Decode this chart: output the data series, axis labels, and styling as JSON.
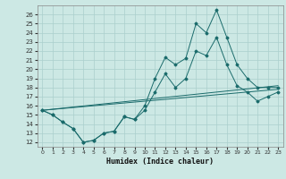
{
  "xlabel": "Humidex (Indice chaleur)",
  "background_color": "#cce8e4",
  "grid_color": "#aacfcc",
  "line_color": "#1a6b6b",
  "xlim": [
    -0.5,
    23.5
  ],
  "ylim": [
    11.5,
    27
  ],
  "xticks": [
    0,
    1,
    2,
    3,
    4,
    5,
    6,
    7,
    8,
    9,
    10,
    11,
    12,
    13,
    14,
    15,
    16,
    17,
    18,
    19,
    20,
    21,
    22,
    23
  ],
  "yticks": [
    12,
    13,
    14,
    15,
    16,
    17,
    18,
    19,
    20,
    21,
    22,
    23,
    24,
    25,
    26
  ],
  "line1_x": [
    0,
    1,
    2,
    3,
    4,
    5,
    6,
    7,
    8,
    9,
    10,
    11,
    12,
    13,
    14,
    15,
    16,
    17,
    18,
    19,
    20,
    21,
    22,
    23
  ],
  "line1_y": [
    15.5,
    15.0,
    14.2,
    13.5,
    12.0,
    12.2,
    13.0,
    13.2,
    14.8,
    14.5,
    16.0,
    19.0,
    21.3,
    20.5,
    21.2,
    25.0,
    24.0,
    26.5,
    23.5,
    20.5,
    19.0,
    18.0,
    18.0,
    18.0
  ],
  "line2_x": [
    0,
    1,
    2,
    3,
    4,
    5,
    6,
    7,
    8,
    9,
    10,
    11,
    12,
    13,
    14,
    15,
    16,
    17,
    18,
    19,
    20,
    21,
    22,
    23
  ],
  "line2_y": [
    15.5,
    15.0,
    14.2,
    13.5,
    12.0,
    12.2,
    13.0,
    13.2,
    14.8,
    14.5,
    15.5,
    17.5,
    19.5,
    18.0,
    19.0,
    22.0,
    21.5,
    23.5,
    20.5,
    18.2,
    17.5,
    16.5,
    17.0,
    17.5
  ],
  "line3_x": [
    0,
    23
  ],
  "line3_y": [
    15.5,
    17.8
  ],
  "line4_x": [
    0,
    23
  ],
  "line4_y": [
    15.5,
    18.2
  ]
}
